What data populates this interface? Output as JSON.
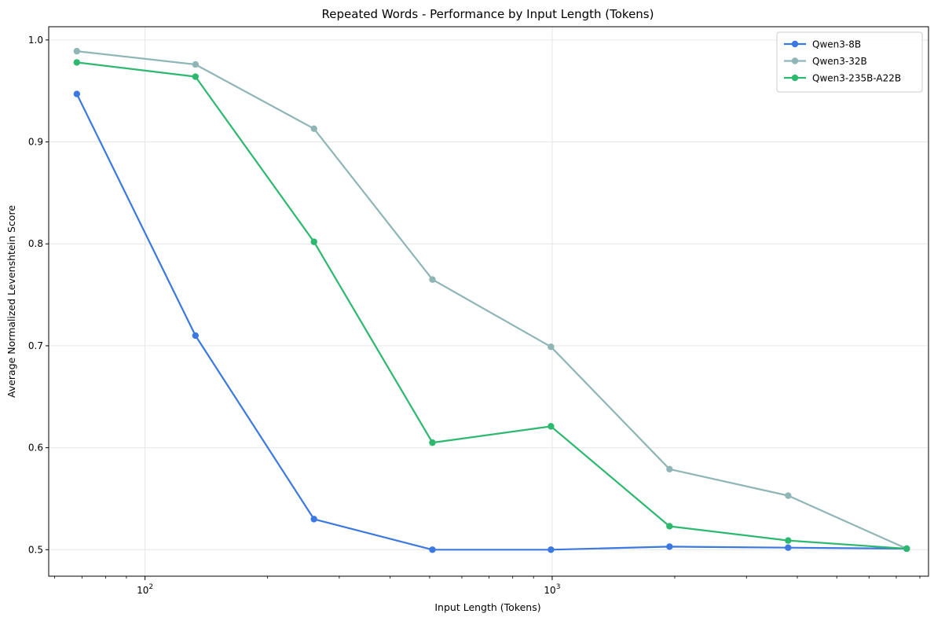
{
  "chart_data": {
    "type": "line",
    "title": "Repeated Words - Performance by Input Length (Tokens)",
    "xlabel": "Input Length (Tokens)",
    "ylabel": "Average Normalized Levenshtein Score",
    "x_scale": "log",
    "xlim": [
      58,
      8400
    ],
    "ylim": [
      0.474,
      1.013
    ],
    "x_major_ticks": [
      {
        "value": 100,
        "base": "10",
        "exp": "2"
      },
      {
        "value": 1000,
        "base": "10",
        "exp": "3"
      }
    ],
    "y_ticks": [
      0.5,
      0.6,
      0.7,
      0.8,
      0.9,
      1.0
    ],
    "y_tick_labels": [
      "0.5",
      "0.6",
      "0.7",
      "0.8",
      "0.9",
      "1.0"
    ],
    "grid": true,
    "legend_position": "top-right",
    "x": [
      68,
      133,
      260,
      508,
      993,
      1942,
      3798,
      7426
    ],
    "series": [
      {
        "name": "Qwen3-8B",
        "color": "#3b78e0",
        "values": [
          0.947,
          0.71,
          0.53,
          0.5,
          0.5,
          0.503,
          0.502,
          0.501
        ]
      },
      {
        "name": "Qwen3-32B",
        "color": "#8fb5b5",
        "values": [
          0.989,
          0.976,
          0.913,
          0.765,
          0.699,
          0.579,
          0.553,
          0.501
        ]
      },
      {
        "name": "Qwen3-235B-A22B",
        "color": "#2db870",
        "values": [
          0.978,
          0.964,
          0.802,
          0.605,
          0.621,
          0.523,
          0.509,
          0.501
        ]
      }
    ]
  }
}
